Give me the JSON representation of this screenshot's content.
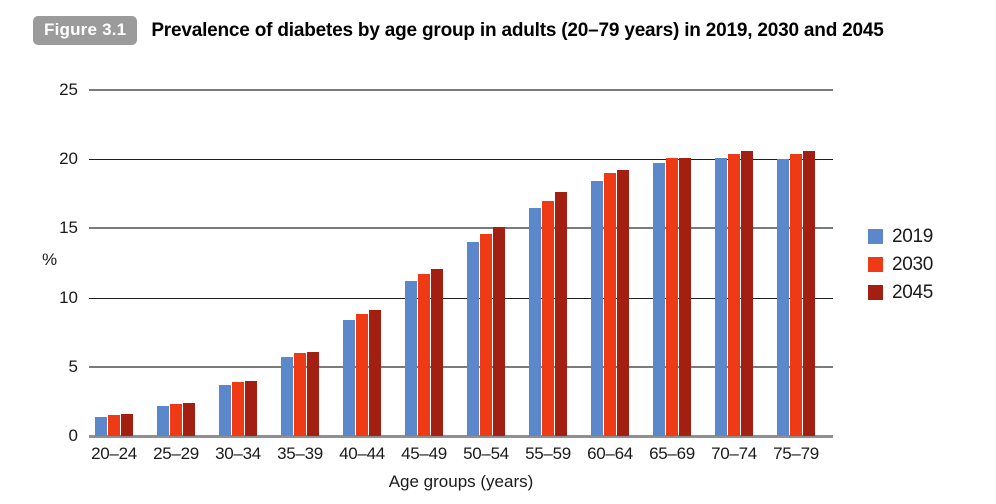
{
  "figure": {
    "badge": "Figure 3.1",
    "title": "Prevalence of diabetes by age group in adults (20–79 years) in 2019, 2030 and 2045"
  },
  "palette": {
    "series_2019": "#5B87CB",
    "series_2030": "#EE3B16",
    "series_2045": "#A31F11",
    "grid_minor_gray": "#7b7b7b",
    "grid_major_black": "#1f1f1f",
    "axis_baseline_gray": "#8f8f8f",
    "badge_background": "#9b9b9b",
    "text": "#1a1a1a"
  },
  "chart_data": {
    "type": "bar",
    "title": "Prevalence of diabetes by age group in adults (20–79 years) in 2019, 2030 and 2045",
    "categories": [
      "20–24",
      "25–29",
      "30–34",
      "35–39",
      "40–44",
      "45–49",
      "50–54",
      "55–59",
      "60–64",
      "65–69",
      "70–74",
      "75–79"
    ],
    "series": [
      {
        "name": "2019",
        "color": "#5B87CB",
        "values": [
          1.4,
          2.2,
          3.7,
          5.7,
          8.4,
          11.2,
          14.0,
          16.5,
          18.4,
          19.7,
          20.1,
          20.0
        ]
      },
      {
        "name": "2030",
        "color": "#EE3B16",
        "values": [
          1.5,
          2.3,
          3.9,
          6.0,
          8.8,
          11.7,
          14.6,
          17.0,
          19.0,
          20.1,
          20.4,
          20.4
        ]
      },
      {
        "name": "2045",
        "color": "#A31F11",
        "values": [
          1.6,
          2.4,
          4.0,
          6.1,
          9.1,
          12.1,
          15.1,
          17.6,
          19.2,
          20.1,
          20.6,
          20.6
        ]
      }
    ],
    "xlabel": "Age groups (years)",
    "ylabel": "%",
    "ylim": [
      0,
      25
    ],
    "yticks": [
      0,
      5,
      10,
      15,
      20,
      25
    ],
    "grid": true,
    "legend_position": "right",
    "legend_labels": [
      "2019",
      "2030",
      "2045"
    ]
  }
}
